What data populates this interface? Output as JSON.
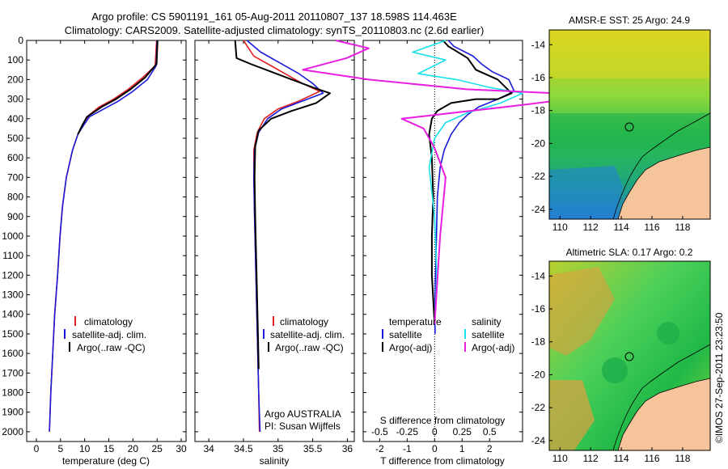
{
  "figure": {
    "title_line1": "Argo profile: CS 5901191_161 05-Aug-2011 20110807_137 18.598S 114.463E",
    "title_line2": "Climatology: CARS2009. Satellite-adjusted climatology: synTS_20110803.nc (2.6d earlier)",
    "side_text": "©IMOS 27-Sep-2011 23:23:50",
    "credit_line1": "Argo AUSTRALIA",
    "credit_line2": "PI: Susan Wijffels"
  },
  "colors": {
    "climatology": "#e02020",
    "satellite": "#1a1ad8",
    "argo": "#000000",
    "t_diff": "#1a1ad8",
    "s_diff_sat": "#19e0e8",
    "s_diff_argo": "#e81ee0",
    "land": "#f5c49a"
  },
  "legend_main": {
    "climatology": "climatology",
    "satellite": "satellite-adj. clim.",
    "argo": "Argo(..raw -QC)"
  },
  "legend_diff": {
    "temperature": "temperature",
    "salinity": "salinity",
    "satellite": "satellite",
    "argo": "Argo(-adj)"
  },
  "chart_data": [
    {
      "type": "line",
      "xlabel": "temperature (deg C)",
      "ylabel": "",
      "xlim": [
        -2,
        31
      ],
      "ylim": [
        2050,
        0
      ],
      "xticks": [
        0,
        5,
        10,
        15,
        20,
        25,
        30
      ],
      "yticks": [
        0,
        100,
        200,
        300,
        400,
        500,
        600,
        700,
        800,
        900,
        1000,
        1100,
        1200,
        1300,
        1400,
        1500,
        1600,
        1700,
        1800,
        1900,
        2000
      ],
      "series": [
        {
          "name": "climatology",
          "key": "climatology",
          "x": [
            24.9,
            24.6,
            22,
            19,
            16,
            13,
            11,
            9.8,
            8.6,
            7.5,
            6.2,
            5.4,
            4.9,
            4.4,
            3.8,
            3.4,
            3.0,
            2.7
          ],
          "y": [
            0,
            130,
            190,
            250,
            300,
            340,
            380,
            420,
            480,
            560,
            700,
            850,
            1000,
            1200,
            1400,
            1600,
            1800,
            2000
          ]
        },
        {
          "name": "satellite-adj. clim.",
          "key": "satellite",
          "x": [
            25.0,
            24.8,
            23,
            20,
            17,
            14,
            11,
            9.9,
            8.6,
            7.5,
            6.2,
            5.4,
            4.9,
            4.4,
            3.8,
            3.4,
            3.0,
            2.7
          ],
          "y": [
            0,
            130,
            200,
            260,
            310,
            350,
            390,
            430,
            480,
            560,
            700,
            850,
            1000,
            1200,
            1400,
            1600,
            1800,
            2000
          ]
        },
        {
          "name": "Argo(..raw -QC)",
          "key": "argo",
          "x": [
            25.1,
            24.9,
            22.5,
            19.5,
            16.5,
            13.5,
            10.5,
            9.6,
            8.6
          ],
          "y": [
            0,
            120,
            190,
            250,
            300,
            340,
            390,
            430,
            480
          ]
        }
      ]
    },
    {
      "type": "line",
      "xlabel": "salinity",
      "ylabel": "",
      "xlim": [
        33.8,
        36.1
      ],
      "ylim": [
        2050,
        0
      ],
      "xticks": [
        34,
        34.5,
        35,
        35.5,
        36
      ],
      "yticks": [
        0,
        100,
        200,
        300,
        400,
        500,
        600,
        700,
        800,
        900,
        1000,
        1100,
        1200,
        1300,
        1400,
        1500,
        1600,
        1700,
        1800,
        1900,
        2000
      ],
      "series": [
        {
          "name": "climatology",
          "key": "climatology",
          "x": [
            34.5,
            34.65,
            34.85,
            35.1,
            35.35,
            35.6,
            35.3,
            35.0,
            34.8,
            34.7,
            34.65,
            34.65,
            34.66,
            34.68,
            34.7,
            34.72,
            34.73
          ],
          "y": [
            0,
            80,
            120,
            170,
            220,
            260,
            310,
            350,
            400,
            470,
            560,
            700,
            900,
            1200,
            1500,
            1800,
            2000
          ]
        },
        {
          "name": "satellite-adj. clim.",
          "key": "satellite",
          "x": [
            34.55,
            34.75,
            35.0,
            35.3,
            35.5,
            35.65,
            35.35,
            35.05,
            34.85,
            34.72,
            34.66,
            34.65,
            34.66,
            34.68,
            34.7,
            34.72,
            34.74
          ],
          "y": [
            0,
            60,
            110,
            170,
            220,
            270,
            310,
            350,
            400,
            470,
            560,
            700,
            900,
            1200,
            1500,
            1800,
            2000
          ]
        },
        {
          "name": "Argo(..raw -QC)",
          "key": "argo",
          "x": [
            34.38,
            34.4,
            34.6,
            34.9,
            35.2,
            35.5,
            35.75,
            35.55,
            35.2,
            34.9,
            34.72,
            34.67,
            34.66,
            34.67,
            34.69,
            34.71,
            34.72
          ],
          "y": [
            0,
            90,
            120,
            160,
            200,
            240,
            270,
            320,
            360,
            400,
            460,
            540,
            700,
            900,
            1200,
            1500,
            1680
          ]
        }
      ]
    },
    {
      "type": "line",
      "xlabel": "T difference from climatology",
      "x2label": "S difference from climatology",
      "ylabel": "",
      "xlim": [
        -2.6,
        3.2
      ],
      "ylim": [
        2050,
        0
      ],
      "xticks": [
        -2,
        -1,
        0,
        1,
        2
      ],
      "x2ticks": [
        -0.5,
        -0.25,
        0,
        0.25,
        0.5
      ],
      "yticks": [
        0,
        100,
        200,
        300,
        400,
        500,
        600,
        700,
        800,
        900,
        1000,
        1100,
        1200,
        1300,
        1400,
        1500,
        1600,
        1700,
        1800,
        1900,
        2000
      ],
      "series": [
        {
          "name": "satellite",
          "group": "temperature",
          "key": "t_diff",
          "x": [
            0.5,
            0.7,
            1.4,
            1.7,
            2.1,
            2.7,
            2.9,
            2.3,
            1.6,
            1.2,
            0.9,
            0.6,
            0.35,
            0.2,
            0.1,
            0.05,
            0.0,
            0.02
          ],
          "y": [
            0,
            30,
            80,
            120,
            160,
            200,
            260,
            300,
            340,
            380,
            420,
            480,
            560,
            650,
            800,
            1100,
            1400,
            1500
          ]
        },
        {
          "name": "Argo(-adj)",
          "group": "temperature",
          "key": "argo",
          "x": [
            0.3,
            0.5,
            1.2,
            1.5,
            2.3,
            2.8,
            2.3,
            1.5,
            0.6,
            0.1,
            -0.1,
            -0.2,
            -0.1,
            -0.05,
            -0.1,
            -0.1,
            0.0
          ],
          "y": [
            0,
            30,
            90,
            150,
            200,
            270,
            300,
            300,
            320,
            360,
            400,
            480,
            600,
            800,
            1000,
            1200,
            1450
          ]
        },
        {
          "name": "satellite",
          "group": "salinity",
          "key": "s_diff_sat",
          "x": [
            0.1,
            -0.2,
            0.1,
            -0.15,
            0.2,
            0.5,
            0.8,
            0.6,
            0.3,
            0.1,
            0.0,
            -0.05,
            0.0,
            0.02,
            0.0
          ],
          "y": [
            0,
            60,
            100,
            170,
            200,
            240,
            270,
            320,
            370,
            420,
            500,
            650,
            900,
            1200,
            1450
          ]
        },
        {
          "name": "Argo(-adj)",
          "group": "salinity",
          "key": "s_diff_argo",
          "x": [
            -0.9,
            -0.6,
            -0.8,
            -1.2,
            -0.6,
            0.3,
            1.5,
            0.8,
            -0.3,
            -0.1,
            0.0,
            0.1,
            0.05,
            0.0
          ],
          "y": [
            0,
            40,
            90,
            150,
            200,
            250,
            280,
            330,
            400,
            450,
            550,
            700,
            1000,
            1450
          ]
        }
      ]
    },
    {
      "type": "heatmap",
      "title": "AMSR-E SST: 25 Argo: 24.9",
      "xlim": [
        109.3,
        119.8
      ],
      "ylim": [
        -24.6,
        -13.1
      ],
      "xticks": [
        110,
        112,
        114,
        116,
        118
      ],
      "yticks": [
        -14,
        -16,
        -18,
        -20,
        -22,
        -24
      ],
      "argo_position": {
        "lon": 114.463,
        "lat": -18.598
      }
    },
    {
      "type": "heatmap",
      "title": "Altimetric SLA: 0.17 Argo: 0.2",
      "xlim": [
        109.3,
        119.8
      ],
      "ylim": [
        -24.6,
        -13.1
      ],
      "xticks": [
        110,
        112,
        114,
        116,
        118
      ],
      "yticks": [
        -14,
        -16,
        -18,
        -20,
        -22,
        -24
      ],
      "argo_position": {
        "lon": 114.463,
        "lat": -18.598
      }
    }
  ]
}
